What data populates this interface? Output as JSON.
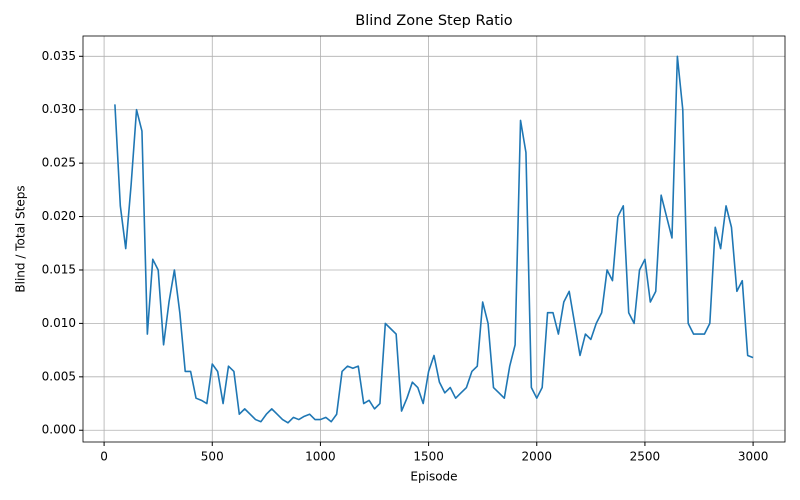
{
  "chart_data": {
    "type": "line",
    "title": "Blind Zone Step Ratio",
    "x_label": "Episode",
    "y_label": "Blind / Total Steps",
    "x": [
      50,
      75,
      100,
      125,
      150,
      175,
      200,
      225,
      250,
      275,
      300,
      325,
      350,
      375,
      400,
      425,
      450,
      475,
      500,
      525,
      550,
      575,
      600,
      625,
      650,
      675,
      700,
      725,
      750,
      775,
      800,
      825,
      850,
      875,
      900,
      925,
      950,
      975,
      1000,
      1025,
      1050,
      1075,
      1100,
      1125,
      1150,
      1175,
      1200,
      1225,
      1250,
      1275,
      1300,
      1325,
      1350,
      1375,
      1400,
      1425,
      1450,
      1475,
      1500,
      1525,
      1550,
      1575,
      1600,
      1625,
      1650,
      1675,
      1700,
      1725,
      1750,
      1775,
      1800,
      1825,
      1850,
      1875,
      1900,
      1925,
      1950,
      1975,
      2000,
      2025,
      2050,
      2075,
      2100,
      2125,
      2150,
      2175,
      2200,
      2225,
      2250,
      2275,
      2300,
      2325,
      2350,
      2375,
      2400,
      2425,
      2450,
      2475,
      2500,
      2525,
      2550,
      2575,
      2600,
      2625,
      2650,
      2675,
      2700,
      2725,
      2750,
      2775,
      2800,
      2825,
      2850,
      2875,
      2900,
      2925,
      2950,
      2975,
      3000
    ],
    "series": [
      {
        "name": "Blind / Total Steps",
        "color": "#1f77b4",
        "values": [
          0.0305,
          0.021,
          0.017,
          0.023,
          0.03,
          0.028,
          0.009,
          0.016,
          0.015,
          0.008,
          0.012,
          0.015,
          0.011,
          0.0055,
          0.0055,
          0.003,
          0.0028,
          0.0025,
          0.0062,
          0.0055,
          0.0025,
          0.006,
          0.0055,
          0.0015,
          0.002,
          0.0015,
          0.001,
          0.0008,
          0.0015,
          0.002,
          0.0015,
          0.001,
          0.0007,
          0.0012,
          0.001,
          0.0013,
          0.0015,
          0.001,
          0.001,
          0.0012,
          0.0008,
          0.0015,
          0.0055,
          0.006,
          0.0058,
          0.006,
          0.0025,
          0.0028,
          0.002,
          0.0025,
          0.01,
          0.0095,
          0.009,
          0.0018,
          0.003,
          0.0045,
          0.004,
          0.0025,
          0.0055,
          0.007,
          0.0045,
          0.0035,
          0.004,
          0.003,
          0.0035,
          0.004,
          0.0055,
          0.006,
          0.012,
          0.01,
          0.004,
          0.0035,
          0.003,
          0.006,
          0.008,
          0.029,
          0.026,
          0.004,
          0.003,
          0.004,
          0.011,
          0.011,
          0.009,
          0.012,
          0.013,
          0.01,
          0.007,
          0.009,
          0.0085,
          0.01,
          0.011,
          0.015,
          0.014,
          0.02,
          0.021,
          0.011,
          0.01,
          0.015,
          0.016,
          0.012,
          0.013,
          0.022,
          0.02,
          0.018,
          0.035,
          0.03,
          0.01,
          0.009,
          0.009,
          0.009,
          0.01,
          0.019,
          0.017,
          0.021,
          0.019,
          0.013,
          0.014,
          0.007,
          0.0068
        ]
      }
    ],
    "xlim": [
      -97.5,
      3147.5
    ],
    "ylim": [
      -0.0011,
      0.0369
    ],
    "xticks": [
      0,
      500,
      1000,
      1500,
      2000,
      2500,
      3000
    ],
    "yticks": [
      {
        "value": 0,
        "label": "0.000"
      },
      0.005,
      {
        "value": 0.01,
        "label": "0.010"
      },
      0.015,
      {
        "value": 0.02,
        "label": "0.020"
      },
      0.025,
      {
        "value": 0.03,
        "label": "0.030"
      },
      0.035
    ],
    "grid": true
  }
}
